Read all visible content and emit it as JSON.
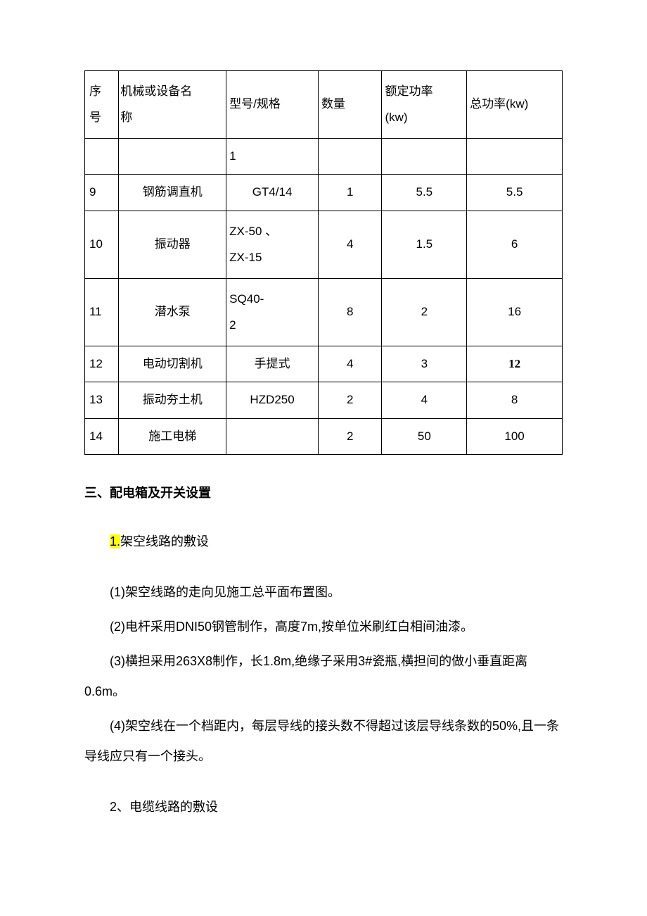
{
  "table": {
    "columns": [
      "序号",
      "机械或设备名称",
      "型号/规格",
      "数量",
      "额定功率(kw)",
      "总功率(kw)"
    ],
    "header_multiline": {
      "seq": "序\n号",
      "name": "机械或设备名\n称",
      "model": "型号/规格",
      "qty": "数量",
      "power": "额定功率\n(kw)",
      "total": "总功率(kw)"
    },
    "partial_row_model": "1",
    "rows": [
      {
        "seq": "9",
        "name": "钢筋调直机",
        "model": "GT4/14",
        "model_align": "center",
        "qty": "1",
        "power": "5.5",
        "total": "5.5",
        "total_bold": false
      },
      {
        "seq": "10",
        "name": "振动器",
        "model": "ZX-50    、\nZX-15",
        "model_align": "left",
        "qty": "4",
        "power": "1.5",
        "total": "6",
        "total_bold": false
      },
      {
        "seq": "11",
        "name": "潜水泵",
        "model": "       SQ40-\n2",
        "model_align": "left",
        "qty": "8",
        "power": "2",
        "total": "16",
        "total_bold": false
      },
      {
        "seq": "12",
        "name": "电动切割机",
        "model": "手提式",
        "model_align": "center",
        "qty": "4",
        "power": "3",
        "total": "12",
        "total_bold": true
      },
      {
        "seq": "13",
        "name": "振动夯土机",
        "model": "HZD250",
        "model_align": "center",
        "qty": "2",
        "power": "4",
        "total": "8",
        "total_bold": false
      },
      {
        "seq": "14",
        "name": "施工电梯",
        "model": "",
        "model_align": "center",
        "qty": "2",
        "power": "50",
        "total": "100",
        "total_bold": false
      }
    ],
    "border_color": "#000000",
    "font_size": 17
  },
  "heading": "三、配电箱及开关设置",
  "section1": {
    "num_highlight": "1.",
    "title_rest": "架空线路的敷设",
    "items": [
      "(1)架空线路的走向见施工总平面布置图。",
      "(2)电杆采用DNI50钢管制作，高度7m,按单位米刷红白相间油漆。",
      "(3)横担采用263X8制作，长1.8m,绝缘子采用3#瓷瓶,横担间的做小垂直距离0.6m。",
      "(4)架空线在一个档距内，每层导线的接头数不得超过该层导线条数的50%,且一条导线应只有一个接头。"
    ]
  },
  "section2": {
    "title": "2、电缆线路的敷设"
  },
  "colors": {
    "background": "#ffffff",
    "text": "#000000",
    "highlight": "#ffff00",
    "border": "#000000"
  }
}
